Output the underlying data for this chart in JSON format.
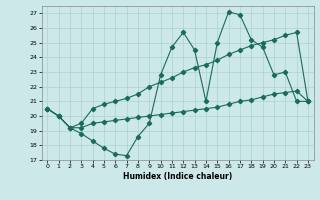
{
  "xlabel": "Humidex (Indice chaleur)",
  "bg_color": "#cce8e8",
  "line_color": "#1a6b5a",
  "xlim": [
    -0.5,
    23.5
  ],
  "ylim": [
    17,
    27.5
  ],
  "yticks": [
    17,
    18,
    19,
    20,
    21,
    22,
    23,
    24,
    25,
    26,
    27
  ],
  "xticks": [
    0,
    1,
    2,
    3,
    4,
    5,
    6,
    7,
    8,
    9,
    10,
    11,
    12,
    13,
    14,
    15,
    16,
    17,
    18,
    19,
    20,
    21,
    22,
    23
  ],
  "line1_x": [
    0,
    1,
    2,
    3,
    4,
    5,
    6,
    7,
    8,
    9,
    10,
    11,
    12,
    13,
    14,
    15,
    16,
    17,
    18,
    19,
    20,
    21,
    22,
    23
  ],
  "line1_y": [
    20.5,
    20.0,
    19.2,
    18.8,
    18.3,
    17.8,
    17.4,
    17.3,
    18.6,
    19.5,
    22.8,
    24.7,
    25.7,
    24.5,
    21.0,
    25.0,
    27.1,
    26.9,
    25.2,
    24.7,
    22.8,
    23.0,
    21.0,
    21.0
  ],
  "line2_x": [
    0,
    1,
    2,
    3,
    4,
    5,
    6,
    7,
    8,
    9,
    10,
    11,
    12,
    13,
    14,
    15,
    16,
    17,
    18,
    19,
    20,
    21,
    22,
    23
  ],
  "line2_y": [
    20.5,
    20.0,
    19.2,
    19.5,
    20.5,
    20.8,
    21.0,
    21.2,
    21.5,
    22.0,
    22.3,
    22.6,
    23.0,
    23.3,
    23.5,
    23.8,
    24.2,
    24.5,
    24.8,
    25.0,
    25.2,
    25.5,
    25.7,
    21.0
  ],
  "line3_x": [
    0,
    1,
    2,
    3,
    4,
    5,
    6,
    7,
    8,
    9,
    10,
    11,
    12,
    13,
    14,
    15,
    16,
    17,
    18,
    19,
    20,
    21,
    22,
    23
  ],
  "line3_y": [
    20.5,
    20.0,
    19.2,
    19.2,
    19.5,
    19.6,
    19.7,
    19.8,
    19.9,
    20.0,
    20.1,
    20.2,
    20.3,
    20.4,
    20.5,
    20.6,
    20.8,
    21.0,
    21.1,
    21.3,
    21.5,
    21.6,
    21.7,
    21.0
  ],
  "marker": "D",
  "marker_size": 2.2,
  "line_width": 0.8
}
